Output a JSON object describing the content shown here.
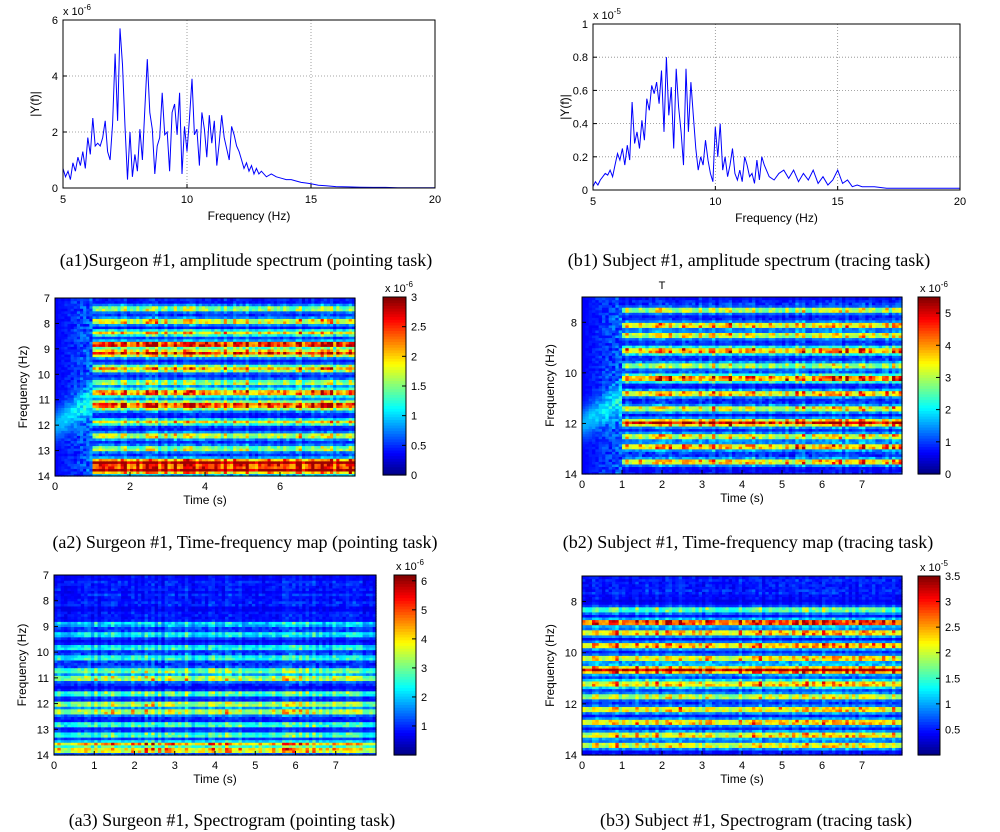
{
  "chart_data": [
    {
      "id": "a1",
      "type": "line",
      "caption": "(a1)Surgeon #1, amplitude spectrum (pointing task)",
      "xlabel": "Frequency (Hz)",
      "ylabel": "|Y(f)|",
      "exponent_label": "x 10",
      "exponent_power": "-6",
      "xlim": [
        5,
        20
      ],
      "ylim": [
        0,
        6
      ],
      "x_ticks": [
        5,
        10,
        15,
        20
      ],
      "y_ticks": [
        0,
        2,
        4,
        6
      ],
      "x_tick_labels": [
        "5",
        "10",
        "15",
        "20"
      ],
      "y_tick_labels": [
        "0",
        "2",
        "4",
        "6"
      ],
      "grid": true,
      "line_color": "#0000ff",
      "x": [
        5.0,
        5.1,
        5.2,
        5.3,
        5.4,
        5.5,
        5.6,
        5.7,
        5.8,
        5.9,
        6.0,
        6.1,
        6.2,
        6.3,
        6.4,
        6.5,
        6.6,
        6.7,
        6.8,
        6.9,
        7.0,
        7.1,
        7.2,
        7.3,
        7.4,
        7.5,
        7.6,
        7.7,
        7.8,
        7.9,
        8.0,
        8.1,
        8.2,
        8.3,
        8.4,
        8.5,
        8.6,
        8.7,
        8.8,
        8.9,
        9.0,
        9.1,
        9.2,
        9.3,
        9.4,
        9.5,
        9.6,
        9.7,
        9.8,
        9.9,
        10.0,
        10.1,
        10.2,
        10.3,
        10.4,
        10.5,
        10.6,
        10.7,
        10.8,
        10.9,
        11.0,
        11.1,
        11.2,
        11.3,
        11.4,
        11.5,
        11.6,
        11.7,
        11.8,
        11.9,
        12.0,
        12.1,
        12.2,
        12.3,
        12.4,
        12.5,
        12.6,
        12.7,
        12.8,
        12.9,
        13.0,
        13.2,
        13.4,
        13.6,
        13.8,
        14.0,
        14.2,
        14.4,
        14.6,
        14.8,
        15.0,
        15.3,
        15.6,
        16.0,
        16.5,
        17.0,
        17.5,
        18.0,
        18.5,
        19.0,
        19.5,
        20.0
      ],
      "y": [
        0.7,
        0.4,
        0.6,
        0.3,
        0.9,
        0.6,
        1.1,
        0.8,
        1.3,
        0.7,
        1.8,
        1.2,
        2.5,
        1.5,
        1.6,
        1.5,
        1.8,
        2.4,
        1.3,
        1.0,
        2.3,
        4.8,
        2.4,
        5.7,
        4.4,
        2.2,
        0.3,
        2.0,
        0.4,
        1.2,
        0.6,
        2.1,
        1.0,
        2.8,
        4.6,
        2.7,
        2.1,
        0.5,
        1.5,
        1.8,
        3.4,
        1.9,
        2.0,
        0.6,
        2.7,
        3.0,
        1.9,
        3.4,
        0.5,
        2.2,
        1.3,
        2.5,
        3.9,
        1.9,
        2.1,
        0.8,
        2.7,
        2.1,
        1.1,
        2.6,
        1.6,
        2.4,
        0.8,
        1.6,
        2.6,
        1.8,
        1.4,
        1.0,
        2.2,
        1.9,
        1.5,
        1.3,
        1.0,
        0.7,
        0.9,
        0.6,
        0.8,
        0.5,
        0.7,
        0.5,
        0.6,
        0.4,
        0.5,
        0.4,
        0.35,
        0.3,
        0.3,
        0.25,
        0.2,
        0.18,
        0.15,
        0.1,
        0.08,
        0.05,
        0.04,
        0.03,
        0.02,
        0.02,
        0.01,
        0.01,
        0.01,
        0.01
      ]
    },
    {
      "id": "b1",
      "type": "line",
      "caption": "(b1) Subject #1, amplitude spectrum (tracing task)",
      "xlabel": "Frequency (Hz)",
      "ylabel": "|Y(f)|",
      "exponent_label": "x 10",
      "exponent_power": "-5",
      "xlim": [
        5,
        20
      ],
      "ylim": [
        0,
        1
      ],
      "x_ticks": [
        5,
        10,
        15,
        20
      ],
      "y_ticks": [
        0,
        0.2,
        0.4,
        0.6,
        0.8,
        1
      ],
      "x_tick_labels": [
        "5",
        "10",
        "15",
        "20"
      ],
      "y_tick_labels": [
        "0",
        "0.2",
        "0.4",
        "0.6",
        "0.8",
        "1"
      ],
      "grid": true,
      "line_color": "#0000ff",
      "x": [
        5.0,
        5.1,
        5.2,
        5.3,
        5.4,
        5.5,
        5.6,
        5.7,
        5.8,
        5.9,
        6.0,
        6.1,
        6.2,
        6.3,
        6.4,
        6.5,
        6.6,
        6.7,
        6.8,
        6.9,
        7.0,
        7.1,
        7.2,
        7.3,
        7.4,
        7.5,
        7.6,
        7.7,
        7.8,
        7.9,
        8.0,
        8.1,
        8.2,
        8.3,
        8.4,
        8.5,
        8.6,
        8.7,
        8.8,
        8.9,
        9.0,
        9.1,
        9.2,
        9.3,
        9.4,
        9.5,
        9.6,
        9.7,
        9.8,
        9.9,
        10.0,
        10.1,
        10.2,
        10.3,
        10.4,
        10.5,
        10.6,
        10.7,
        10.8,
        10.9,
        11.0,
        11.1,
        11.2,
        11.3,
        11.4,
        11.5,
        11.6,
        11.7,
        11.8,
        11.9,
        12.0,
        12.2,
        12.4,
        12.6,
        12.8,
        13.0,
        13.2,
        13.4,
        13.6,
        13.8,
        14.0,
        14.2,
        14.4,
        14.6,
        14.8,
        15.0,
        15.2,
        15.4,
        15.6,
        15.8,
        16.0,
        16.5,
        17.0,
        17.5,
        18.0,
        18.5,
        19.0,
        19.5,
        20.0
      ],
      "y": [
        0.02,
        0.05,
        0.03,
        0.06,
        0.08,
        0.1,
        0.09,
        0.12,
        0.08,
        0.15,
        0.22,
        0.18,
        0.25,
        0.15,
        0.27,
        0.18,
        0.53,
        0.28,
        0.35,
        0.25,
        0.42,
        0.3,
        0.55,
        0.48,
        0.63,
        0.58,
        0.65,
        0.52,
        0.72,
        0.35,
        0.8,
        0.45,
        0.62,
        0.25,
        0.73,
        0.5,
        0.35,
        0.15,
        0.73,
        0.35,
        0.65,
        0.45,
        0.25,
        0.12,
        0.2,
        0.15,
        0.3,
        0.18,
        0.1,
        0.05,
        0.38,
        0.2,
        0.4,
        0.12,
        0.2,
        0.08,
        0.15,
        0.25,
        0.1,
        0.06,
        0.12,
        0.05,
        0.2,
        0.15,
        0.08,
        0.1,
        0.04,
        0.18,
        0.06,
        0.2,
        0.15,
        0.08,
        0.06,
        0.1,
        0.12,
        0.07,
        0.12,
        0.05,
        0.1,
        0.06,
        0.12,
        0.04,
        0.08,
        0.03,
        0.06,
        0.12,
        0.04,
        0.06,
        0.02,
        0.03,
        0.02,
        0.02,
        0.01,
        0.01,
        0.01,
        0.01,
        0.01,
        0.01,
        0.01
      ]
    },
    {
      "id": "a2",
      "type": "heatmap",
      "caption": "(a2) Surgeon #1, Time-frequency map (pointing task)",
      "xlabel": "Time (s)",
      "ylabel": "Frequency (Hz)",
      "title": "",
      "xlim": [
        0,
        8
      ],
      "ylim": [
        7,
        14
      ],
      "x_ticks": [
        0,
        2,
        4,
        6
      ],
      "y_ticks": [
        7,
        8,
        9,
        10,
        11,
        12,
        13,
        14
      ],
      "x_tick_labels": [
        "0",
        "2",
        "4",
        "6"
      ],
      "y_tick_labels": [
        "7",
        "8",
        "9",
        "10",
        "11",
        "12",
        "13",
        "14"
      ],
      "colorbar_range": [
        0,
        3
      ],
      "colorbar_ticks": [
        0,
        0.5,
        1,
        1.5,
        2,
        2.5,
        3
      ],
      "colorbar_tick_labels": [
        "0",
        "0.5",
        "1",
        "1.5",
        "2",
        "2.5",
        "3"
      ],
      "colorbar_exponent_label": "x 10",
      "colorbar_exponent_power": "-6",
      "colormap": "jet",
      "onset_time": 1.0,
      "seed": 11,
      "bands": [
        [
          7.25,
          0.15,
          0.9
        ],
        [
          7.55,
          0.15,
          0.95
        ],
        [
          8.1,
          0.12,
          0.45
        ],
        [
          8.6,
          0.12,
          0.55
        ],
        [
          9.15,
          0.12,
          0.55
        ],
        [
          9.8,
          0.18,
          0.75
        ],
        [
          10.3,
          0.15,
          0.7
        ],
        [
          10.7,
          0.12,
          0.45
        ],
        [
          11.25,
          0.15,
          0.6
        ],
        [
          11.85,
          0.15,
          0.75
        ],
        [
          12.2,
          0.12,
          0.9
        ],
        [
          12.65,
          0.12,
          0.5
        ],
        [
          13.1,
          0.12,
          0.6
        ],
        [
          13.6,
          0.12,
          0.45
        ]
      ]
    },
    {
      "id": "b2",
      "type": "heatmap",
      "caption": "(b2) Subject #1, Time-frequency map (tracing task)",
      "xlabel": "Time (s)",
      "ylabel": "Frequency (Hz)",
      "title": "T",
      "xlim": [
        0,
        8
      ],
      "ylim": [
        7,
        14
      ],
      "x_ticks": [
        0,
        1,
        2,
        3,
        4,
        5,
        6,
        7
      ],
      "y_ticks": [
        8,
        10,
        12,
        14
      ],
      "x_tick_labels": [
        "0",
        "1",
        "2",
        "3",
        "4",
        "5",
        "6",
        "7"
      ],
      "y_tick_labels": [
        "8",
        "10",
        "12",
        "14"
      ],
      "colorbar_range": [
        0,
        5.5
      ],
      "colorbar_ticks": [
        0,
        1,
        2,
        3,
        4,
        5
      ],
      "colorbar_tick_labels": [
        "0",
        "1",
        "2",
        "3",
        "4",
        "5"
      ],
      "colorbar_exponent_label": "x 10",
      "colorbar_exponent_power": "-6",
      "colormap": "jet",
      "onset_time": 1.0,
      "seed": 23,
      "bands": [
        [
          7.5,
          0.12,
          0.6
        ],
        [
          8.1,
          0.12,
          0.65
        ],
        [
          8.5,
          0.12,
          0.55
        ],
        [
          9.05,
          0.15,
          0.8
        ],
        [
          9.6,
          0.12,
          0.55
        ],
        [
          10.2,
          0.12,
          0.6
        ],
        [
          10.8,
          0.15,
          0.7
        ],
        [
          11.3,
          0.12,
          0.5
        ],
        [
          11.9,
          0.15,
          0.65
        ],
        [
          12.5,
          0.12,
          0.55
        ],
        [
          12.9,
          0.12,
          0.6
        ],
        [
          13.5,
          0.12,
          0.5
        ]
      ]
    },
    {
      "id": "a3",
      "type": "heatmap",
      "caption": "(a3) Surgeon #1, Spectrogram (pointing task)",
      "xlabel": "Time (s)",
      "ylabel": "Frequency (Hz)",
      "title": "",
      "xlim": [
        0,
        8
      ],
      "ylim": [
        7,
        14
      ],
      "x_ticks": [
        0,
        1,
        2,
        3,
        4,
        5,
        6,
        7
      ],
      "y_ticks": [
        7,
        8,
        9,
        10,
        11,
        12,
        13,
        14
      ],
      "x_tick_labels": [
        "0",
        "1",
        "2",
        "3",
        "4",
        "5",
        "6",
        "7"
      ],
      "y_tick_labels": [
        "7",
        "8",
        "9",
        "10",
        "11",
        "12",
        "13",
        "14"
      ],
      "colorbar_range": [
        0,
        6.2
      ],
      "colorbar_ticks": [
        1,
        2,
        3,
        4,
        5,
        6
      ],
      "colorbar_tick_labels": [
        "1",
        "2",
        "3",
        "4",
        "5",
        "6"
      ],
      "colorbar_exponent_label": "x 10",
      "colorbar_exponent_power": "-6",
      "colormap": "jet",
      "onset_time": 0,
      "seed": 37,
      "bands": [
        [
          7.2,
          0.1,
          0.65
        ],
        [
          7.45,
          0.1,
          0.6
        ],
        [
          7.8,
          0.1,
          0.4
        ],
        [
          8.2,
          0.1,
          0.35
        ],
        [
          8.7,
          0.12,
          0.55
        ],
        [
          9.0,
          0.1,
          0.5
        ],
        [
          9.4,
          0.1,
          0.4
        ],
        [
          10.0,
          0.12,
          0.5
        ],
        [
          10.3,
          0.1,
          0.45
        ],
        [
          10.8,
          0.1,
          0.35
        ],
        [
          11.2,
          0.1,
          0.3
        ],
        [
          11.7,
          0.1,
          0.3
        ],
        [
          12.1,
          0.1,
          0.25
        ]
      ]
    },
    {
      "id": "b3",
      "type": "heatmap",
      "caption": "(b3) Subject #1, Spectrogram (tracing task)",
      "xlabel": "Time (s)",
      "ylabel": "Frequency (Hz)",
      "title": "",
      "xlim": [
        0,
        8
      ],
      "ylim": [
        7,
        14
      ],
      "x_ticks": [
        0,
        1,
        2,
        3,
        4,
        5,
        6,
        7
      ],
      "y_ticks": [
        8,
        10,
        12,
        14
      ],
      "x_tick_labels": [
        "0",
        "1",
        "2",
        "3",
        "4",
        "5",
        "6",
        "7"
      ],
      "y_tick_labels": [
        "8",
        "10",
        "12",
        "14"
      ],
      "colorbar_range": [
        0,
        3.5
      ],
      "colorbar_ticks": [
        0.5,
        1,
        1.5,
        2,
        2.5,
        3,
        3.5
      ],
      "colorbar_tick_labels": [
        "0.5",
        "1",
        "1.5",
        "2",
        "2.5",
        "3",
        "3.5"
      ],
      "colorbar_exponent_label": "x 10",
      "colorbar_exponent_power": "-5",
      "colormap": "jet",
      "onset_time": 0,
      "seed": 53,
      "bands": [
        [
          7.4,
          0.12,
          0.55
        ],
        [
          7.8,
          0.12,
          0.6
        ],
        [
          8.3,
          0.12,
          0.65
        ],
        [
          8.8,
          0.12,
          0.6
        ],
        [
          9.3,
          0.12,
          0.55
        ],
        [
          9.8,
          0.15,
          0.6
        ],
        [
          10.35,
          0.15,
          0.9
        ],
        [
          10.8,
          0.12,
          0.6
        ],
        [
          11.3,
          0.12,
          0.7
        ],
        [
          11.8,
          0.12,
          0.65
        ],
        [
          12.2,
          0.12,
          0.85
        ],
        [
          12.7,
          0.12,
          0.4
        ]
      ]
    }
  ]
}
